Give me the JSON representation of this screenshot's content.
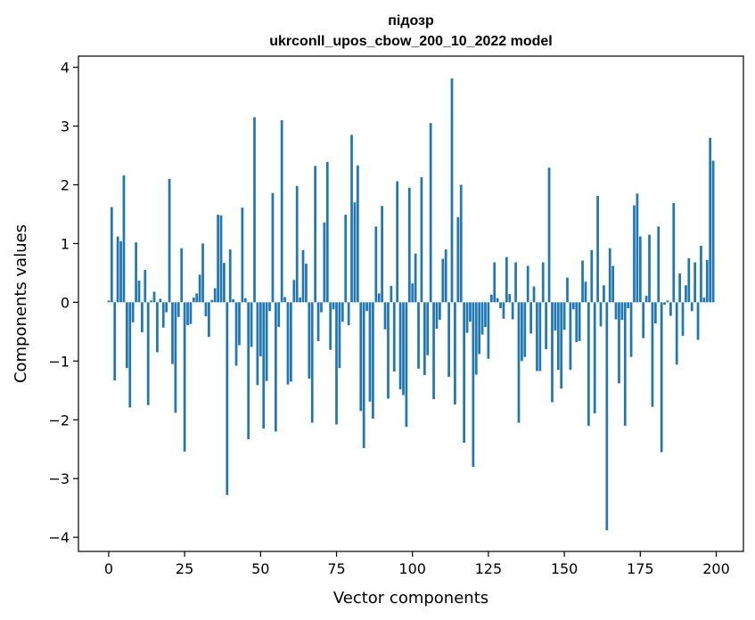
{
  "chart_data": {
    "type": "bar",
    "title_line1": "підозр",
    "title_line2": "ukrconll_upos_cbow_200_10_2022 model",
    "xlabel": "Vector components",
    "ylabel": "Components values",
    "xlim": [
      -9.95,
      208.95
    ],
    "ylim": [
      -4.24,
      4.19
    ],
    "xticks": [
      0,
      25,
      50,
      75,
      100,
      125,
      150,
      175,
      200
    ],
    "xtick_labels": [
      "0",
      "25",
      "50",
      "75",
      "100",
      "125",
      "150",
      "175",
      "200"
    ],
    "yticks": [
      4,
      3,
      2,
      1,
      0,
      -1,
      -2,
      -3,
      -4
    ],
    "ytick_labels": [
      "4",
      "3",
      "2",
      "1",
      "0",
      "−1",
      "−2",
      "−3",
      "−4"
    ],
    "bar_color": "#1f77b4",
    "grid": false,
    "x": [
      0,
      1,
      2,
      3,
      4,
      5,
      6,
      7,
      8,
      9,
      10,
      11,
      12,
      13,
      14,
      15,
      16,
      17,
      18,
      19,
      20,
      21,
      22,
      23,
      24,
      25,
      26,
      27,
      28,
      29,
      30,
      31,
      32,
      33,
      34,
      35,
      36,
      37,
      38,
      39,
      40,
      41,
      42,
      43,
      44,
      45,
      46,
      47,
      48,
      49,
      50,
      51,
      52,
      53,
      54,
      55,
      56,
      57,
      58,
      59,
      60,
      61,
      62,
      63,
      64,
      65,
      66,
      67,
      68,
      69,
      70,
      71,
      72,
      73,
      74,
      75,
      76,
      77,
      78,
      79,
      80,
      81,
      82,
      83,
      84,
      85,
      86,
      87,
      88,
      89,
      90,
      91,
      92,
      93,
      94,
      95,
      96,
      97,
      98,
      99,
      100,
      101,
      102,
      103,
      104,
      105,
      106,
      107,
      108,
      109,
      110,
      111,
      112,
      113,
      114,
      115,
      116,
      117,
      118,
      119,
      120,
      121,
      122,
      123,
      124,
      125,
      126,
      127,
      128,
      129,
      130,
      131,
      132,
      133,
      134,
      135,
      136,
      137,
      138,
      139,
      140,
      141,
      142,
      143,
      144,
      145,
      146,
      147,
      148,
      149,
      150,
      151,
      152,
      153,
      154,
      155,
      156,
      157,
      158,
      159,
      160,
      161,
      162,
      163,
      164,
      165,
      166,
      167,
      168,
      169,
      170,
      171,
      172,
      173,
      174,
      175,
      176,
      177,
      178,
      179,
      180,
      181,
      182,
      183,
      184,
      185,
      186,
      187,
      188,
      189,
      190,
      191,
      192,
      193,
      194,
      195,
      196,
      197,
      198,
      199
    ],
    "values": [
      0.03,
      1.62,
      -1.33,
      1.12,
      1.04,
      2.16,
      -1.12,
      -1.79,
      -0.34,
      1.02,
      0.37,
      -0.51,
      0.55,
      -1.75,
      0.03,
      0.18,
      -0.85,
      0.06,
      -0.43,
      -0.17,
      2.1,
      -1.05,
      -1.88,
      -0.25,
      0.92,
      -2.54,
      -0.39,
      -0.37,
      0.08,
      0.15,
      0.47,
      1.0,
      -0.24,
      -0.59,
      0.04,
      0.24,
      1.49,
      1.48,
      0.67,
      -3.28,
      0.9,
      0.05,
      -1.08,
      -0.73,
      1.61,
      0.07,
      -2.33,
      -0.76,
      3.15,
      -1.41,
      -0.92,
      -2.15,
      -1.34,
      -0.15,
      1.86,
      -2.2,
      -0.42,
      3.1,
      0.09,
      -1.4,
      -1.35,
      0.38,
      1.98,
      0.08,
      0.89,
      0.66,
      -1.3,
      -2.05,
      2.32,
      -0.66,
      -0.17,
      1.36,
      2.39,
      -0.81,
      -0.12,
      -2.08,
      -1.12,
      -0.33,
      1.49,
      -0.39,
      2.85,
      1.7,
      2.33,
      -1.85,
      -2.48,
      -0.15,
      -1.69,
      -1.98,
      1.29,
      0.15,
      1.64,
      -0.46,
      -1.64,
      0.28,
      -1.18,
      2.06,
      -1.48,
      -1.58,
      -2.12,
      1.95,
      0.32,
      0.83,
      -1.13,
      2.13,
      -1.24,
      -0.9,
      3.05,
      -1.65,
      -0.45,
      -0.3,
      0.74,
      0.9,
      -1.27,
      3.81,
      -1.74,
      1.45,
      2.0,
      -2.39,
      -0.52,
      -0.33,
      -2.8,
      -1.23,
      -0.88,
      -0.55,
      -0.42,
      -0.96,
      0.13,
      0.68,
      0.07,
      -0.1,
      -0.28,
      0.77,
      0.14,
      -0.29,
      0.68,
      -2.05,
      -1.0,
      -0.93,
      0.62,
      -0.53,
      0.27,
      -1.17,
      -1.17,
      0.68,
      -0.8,
      2.29,
      -1.7,
      -0.48,
      -1.15,
      -1.47,
      -0.47,
      0.42,
      -1.15,
      -0.12,
      -0.68,
      -0.66,
      0.71,
      0.35,
      -2.1,
      0.89,
      -1.89,
      1.81,
      -0.41,
      0.29,
      -3.88,
      0.92,
      0.62,
      -0.29,
      -1.38,
      -0.3,
      -2.1,
      -0.1,
      -0.93,
      1.65,
      1.85,
      1.12,
      -0.61,
      0.11,
      1.15,
      -1.78,
      -0.36,
      1.29,
      -2.55,
      -0.04,
      0.03,
      -0.23,
      1.69,
      -1.06,
      0.49,
      -0.57,
      0.29,
      0.75,
      -0.15,
      0.68,
      -0.64,
      0.96,
      0.08,
      0.72,
      2.8,
      2.41
    ]
  }
}
